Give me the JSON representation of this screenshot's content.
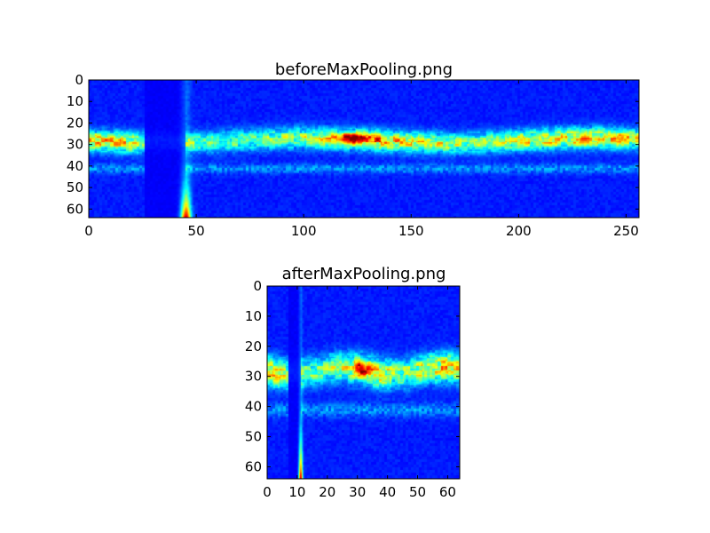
{
  "chart_data": [
    {
      "type": "heatmap",
      "title": "beforeMaxPooling.png",
      "xlabel": "",
      "ylabel": "",
      "xlim": [
        0,
        256
      ],
      "ylim": [
        64,
        0
      ],
      "xticks": [
        0,
        50,
        100,
        150,
        200,
        250
      ],
      "yticks": [
        0,
        10,
        20,
        30,
        40,
        50,
        60
      ],
      "colormap": "jet",
      "grid": false,
      "features": {
        "dark_band_cols": [
          26,
          45
        ],
        "spike_col": 45,
        "main_band_row": 28,
        "secondary_band_row": 41,
        "hotspot": {
          "x": 124,
          "y": 27
        }
      }
    },
    {
      "type": "heatmap",
      "title": "afterMaxPooling.png",
      "xlabel": "",
      "ylabel": "",
      "xlim": [
        0,
        64
      ],
      "ylim": [
        64,
        0
      ],
      "xticks": [
        0,
        10,
        20,
        30,
        40,
        50,
        60
      ],
      "yticks": [
        0,
        10,
        20,
        30,
        40,
        50,
        60
      ],
      "colormap": "jet",
      "grid": false,
      "features": {
        "dark_band_cols": [
          7,
          11
        ],
        "spike_col": 11,
        "main_band_row": 28,
        "secondary_band_row": 41,
        "hotspot": {
          "x": 31,
          "y": 27
        }
      }
    }
  ]
}
